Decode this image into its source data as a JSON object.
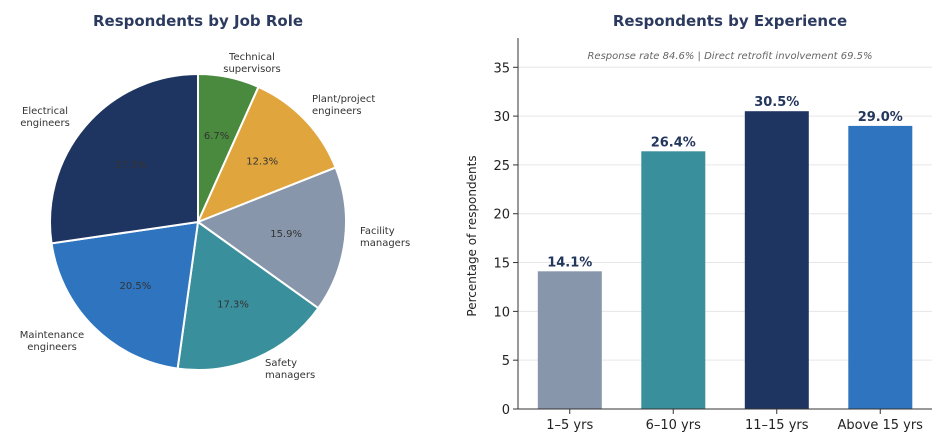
{
  "chart_data": [
    {
      "type": "pie",
      "title": "Respondents by Job Role",
      "slices": [
        {
          "label": "Technical supervisors",
          "value": 6.7,
          "pct_label": "6.7%",
          "color": "#4a8a3f"
        },
        {
          "label": "Plant/project engineers",
          "value": 12.3,
          "pct_label": "12.3%",
          "color": "#e1a53e"
        },
        {
          "label": "Facility managers",
          "value": 15.9,
          "pct_label": "15.9%",
          "color": "#8896ab"
        },
        {
          "label": "Safety managers",
          "value": 17.3,
          "pct_label": "17.3%",
          "color": "#3a8f9c"
        },
        {
          "label": "Maintenance engineers",
          "value": 20.5,
          "pct_label": "20.5%",
          "color": "#2e74be"
        },
        {
          "label": "Electrical engineers",
          "value": 27.3,
          "pct_label": "27.3%",
          "color": "#1f3561"
        }
      ]
    },
    {
      "type": "bar",
      "title": "Respondents by Experience",
      "annotation": "Response rate 84.6%  |  Direct retrofit involvement 69.5%",
      "ylabel": "Percentage of respondents",
      "xlabel": "",
      "ylim": [
        0,
        38
      ],
      "yticks": [
        0,
        5,
        10,
        15,
        20,
        25,
        30,
        35
      ],
      "categories": [
        "1–5 yrs",
        "6–10 yrs",
        "11–15 yrs",
        "Above 15 yrs"
      ],
      "values": [
        14.1,
        26.4,
        30.5,
        29.0
      ],
      "value_labels": [
        "14.1%",
        "26.4%",
        "30.5%",
        "29.0%"
      ],
      "colors": [
        "#8896ab",
        "#3a8f9c",
        "#1f3561",
        "#2e74be"
      ]
    }
  ]
}
